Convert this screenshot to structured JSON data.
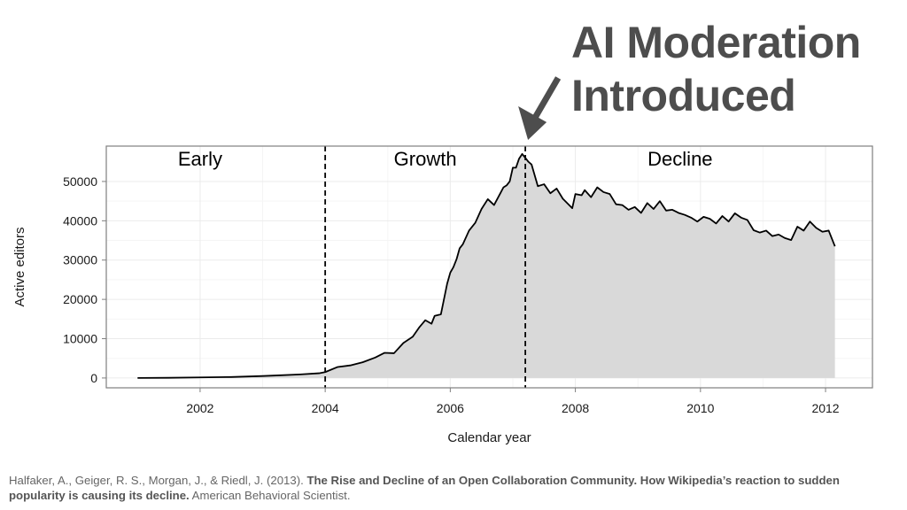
{
  "annotation": {
    "line1": "AI Moderation",
    "line2": "Introduced"
  },
  "citation": {
    "authors": "Halfaker, A., Geiger, R. S., Morgan, J., & Riedl, J. (2013).",
    "title": "The Rise and Decline of an Open Collaboration Community. How Wikipedia’s reaction to sudden popularity is causing its decline.",
    "journal": "American Behavioral Scientist."
  },
  "colors": {
    "area_fill": "#d9d9d9",
    "line": "#000000",
    "annotation_text": "#4d4d4d",
    "arrow": "#4d4d4d",
    "grid": "#ebebeb"
  },
  "chart_data": {
    "type": "area",
    "title": "",
    "xlabel": "Calendar year",
    "ylabel": "Active editors",
    "xlim": [
      2000.5,
      2012.75
    ],
    "ylim": [
      -2500,
      59000
    ],
    "grid": true,
    "x_ticks": [
      2002,
      2004,
      2006,
      2008,
      2010,
      2012
    ],
    "x_tick_labels": [
      "2002",
      "2004",
      "2006",
      "2008",
      "2010",
      "2012"
    ],
    "y_ticks": [
      0,
      10000,
      20000,
      30000,
      40000,
      50000
    ],
    "y_tick_labels": [
      "0",
      "10000",
      "20000",
      "30000",
      "40000",
      "50000"
    ],
    "phases": [
      {
        "label": "Early"
      },
      {
        "label": "Growth"
      },
      {
        "label": "Decline"
      }
    ],
    "phase_boundaries": [
      2004.0,
      2007.2
    ],
    "annotation_x": 2007.2,
    "series": [
      {
        "x": [
          2001.0,
          2001.5,
          2002.0,
          2002.5,
          2003.0,
          2003.3,
          2003.6,
          2003.9,
          2004.0,
          2004.2,
          2004.4,
          2004.6,
          2004.8,
          2004.95,
          2005.1,
          2005.25,
          2005.4,
          2005.5,
          2005.6,
          2005.7,
          2005.75,
          2005.85,
          2005.95,
          2006.0,
          2006.05,
          2006.1,
          2006.15,
          2006.2,
          2006.3,
          2006.4,
          2006.5,
          2006.6,
          2006.7,
          2006.8,
          2006.85,
          2006.9,
          2006.95,
          2007.0,
          2007.05,
          2007.1,
          2007.15,
          2007.2,
          2007.25,
          2007.3,
          2007.4,
          2007.5,
          2007.6,
          2007.7,
          2007.8,
          2007.95,
          2008.0,
          2008.1,
          2008.15,
          2008.25,
          2008.35,
          2008.45,
          2008.55,
          2008.65,
          2008.75,
          2008.85,
          2008.95,
          2009.05,
          2009.15,
          2009.25,
          2009.35,
          2009.45,
          2009.55,
          2009.65,
          2009.75,
          2009.85,
          2009.95,
          2010.05,
          2010.15,
          2010.25,
          2010.35,
          2010.45,
          2010.55,
          2010.65,
          2010.75,
          2010.85,
          2010.95,
          2011.05,
          2011.15,
          2011.25,
          2011.35,
          2011.45,
          2011.55,
          2011.65,
          2011.75,
          2011.85,
          2011.95,
          2012.05,
          2012.15
        ],
        "values": [
          0,
          50,
          150,
          250,
          500,
          700,
          900,
          1200,
          1500,
          2800,
          3200,
          4000,
          5200,
          6400,
          6300,
          8900,
          10500,
          12800,
          14700,
          13800,
          15800,
          16200,
          24000,
          26800,
          28200,
          30200,
          33000,
          34000,
          37500,
          39500,
          43000,
          45500,
          44000,
          47000,
          48500,
          49000,
          50000,
          53500,
          53500,
          55800,
          57000,
          56000,
          55000,
          54300,
          48800,
          49300,
          47000,
          48200,
          45600,
          43200,
          46800,
          46500,
          47800,
          46000,
          48500,
          47300,
          46800,
          44200,
          44000,
          42800,
          43500,
          42000,
          44500,
          43000,
          45000,
          42600,
          42800,
          42000,
          41500,
          40800,
          39800,
          41000,
          40500,
          39300,
          41200,
          39800,
          41900,
          40800,
          40200,
          37600,
          37000,
          37500,
          36100,
          36500,
          35600,
          35100,
          38500,
          37500,
          39800,
          38200,
          37200,
          37500,
          33500
        ]
      }
    ]
  }
}
